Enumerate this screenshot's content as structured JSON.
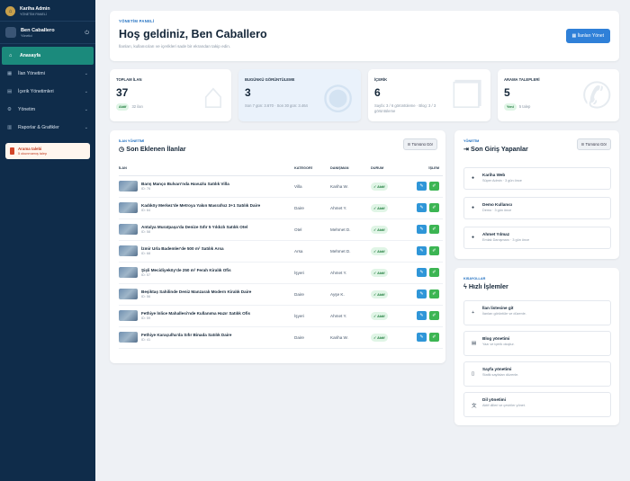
{
  "brand": {
    "title": "Kariha Admin",
    "subtitle": "YÖNETİM PANELİ"
  },
  "user": {
    "name": "Ben Caballero",
    "role": "Yönetici"
  },
  "nav": [
    {
      "label": "Anasayfa",
      "icon": "home-icon",
      "active": true
    },
    {
      "label": "İlan Yönetimi",
      "icon": "building-icon"
    },
    {
      "label": "İçerik Yönetimleri",
      "icon": "file-icon"
    },
    {
      "label": "Yönetim",
      "icon": "gear-icon"
    },
    {
      "label": "Raporlar & Grafikler",
      "icon": "chart-icon"
    }
  ],
  "alert": {
    "title": "Arama talebi",
    "text": "5 okunmamış talep"
  },
  "hero": {
    "eyebrow": "YÖNETİM PANELİ",
    "title": "Hoş geldiniz, Ben Caballero",
    "subtitle": "İlanları, kullanıcıları ve içerikleri sade bir ekrandan takip edin.",
    "button": "İlanları Yönet"
  },
  "stats": [
    {
      "label": "TOPLAM İLAN",
      "value": "37",
      "pill": "Aktif",
      "meta": "32 ilan"
    },
    {
      "label": "BUGÜNKÜ GÖRÜNTÜLEME",
      "value": "3",
      "meta": "Son 7 gün: 3.670 · Son 30 gün: 3.464"
    },
    {
      "label": "İÇERİK",
      "value": "6",
      "meta": "Sayfa: 3 / 6 görüntüleme · Blog: 3 / 3 görüntüleme"
    },
    {
      "label": "ARAMA TALEPLERİ",
      "value": "5",
      "pill": "Yeni",
      "meta": "5 talep"
    }
  ],
  "listings": {
    "eyebrow": "İLAN YÖNETİMİ",
    "title": "Son Eklenen İlanlar",
    "button": "Tümünü Gör",
    "headers": [
      "İLAN",
      "KATEGORİ",
      "DANIŞMAN",
      "DURUM",
      "İŞLEM"
    ],
    "rows": [
      {
        "title": "Barış Manço Bulvarı'nda Havuzlu Satılık Villa",
        "id": "ID: 76",
        "category": "Villa",
        "agent": "Kariha W.",
        "status": "Aktif"
      },
      {
        "title": "Kadıköy Merkez'de Metroya Yakın Masrafsız 3+1 Satılık Daire",
        "id": "ID: 64",
        "category": "Daire",
        "agent": "Ahmet Y.",
        "status": "Aktif"
      },
      {
        "title": "Antalya Muratpaşa'da Denize Sıfır 5 Yıldızlı Satılık Otel",
        "id": "ID: 58",
        "category": "Otel",
        "agent": "Mehmet D.",
        "status": "Aktif"
      },
      {
        "title": "İzmir Urla Bademler'de 500 m² Satılık Arsa",
        "id": "ID: 68",
        "category": "Arsa",
        "agent": "Mehmet D.",
        "status": "Aktif"
      },
      {
        "title": "Şişli Mecidiyeköy'de 250 m² Ferah Kiralık Ofis",
        "id": "ID: 57",
        "category": "İşyeri",
        "agent": "Ahmet Y.",
        "status": "Aktif"
      },
      {
        "title": "Beşiktaş Sahilinde Deniz Manzaralı Modern Kiralık Daire",
        "id": "ID: 56",
        "category": "Daire",
        "agent": "Ayşe K.",
        "status": "Aktif"
      },
      {
        "title": "Fethiye İnlice Mahallesi'nde Kullanıma Hazır Satılık Ofis",
        "id": "ID: 59",
        "category": "İşyeri",
        "agent": "Ahmet Y.",
        "status": "Aktif"
      },
      {
        "title": "Fethiye Karaçulha'da Sıfır Binada Satılık Daire",
        "id": "ID: 41",
        "category": "Daire",
        "agent": "Kariha W.",
        "status": "Aktif"
      }
    ]
  },
  "logins": {
    "eyebrow": "YÖNETİM",
    "title": "Son Giriş Yapanlar",
    "button": "Tümünü Gör",
    "items": [
      {
        "name": "Kariha Web",
        "meta": "Süper Admin · 3 gün önce"
      },
      {
        "name": "Demo Kullanıcı",
        "meta": "Demo · 3 gün önce"
      },
      {
        "name": "Ahmet Yılmaz",
        "meta": "Emlak Danışmanı · 3 gün önce"
      }
    ]
  },
  "shortcuts": {
    "eyebrow": "KISAYOLLAR",
    "title": "Hızlı İşlemler",
    "items": [
      {
        "name": "İlan listesine git",
        "meta": "İlanları görüntüle ve düzenle.",
        "icon": "plus-icon"
      },
      {
        "name": "Blog yönetimi",
        "meta": "Yazı ve içerik oluştur.",
        "icon": "newspaper-icon"
      },
      {
        "name": "Sayfa yönetimi",
        "meta": "Statik sayfaları düzenle.",
        "icon": "page-icon"
      },
      {
        "name": "Dil yönetimi",
        "meta": "Aktif dilleri ve çeviriler yönet.",
        "icon": "language-icon"
      }
    ]
  }
}
